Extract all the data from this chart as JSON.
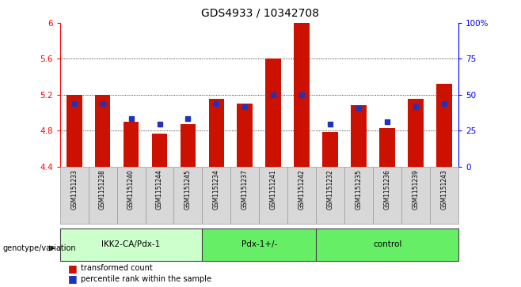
{
  "title": "GDS4933 / 10342708",
  "samples": [
    "GSM1151233",
    "GSM1151238",
    "GSM1151240",
    "GSM1151244",
    "GSM1151245",
    "GSM1151234",
    "GSM1151237",
    "GSM1151241",
    "GSM1151242",
    "GSM1151232",
    "GSM1151235",
    "GSM1151236",
    "GSM1151239",
    "GSM1151243"
  ],
  "red_values": [
    5.2,
    5.2,
    4.9,
    4.77,
    4.87,
    5.15,
    5.1,
    5.6,
    6.0,
    4.78,
    5.08,
    4.83,
    5.15,
    5.32
  ],
  "blue_values": [
    5.1,
    5.1,
    4.93,
    4.87,
    4.93,
    5.1,
    5.07,
    5.2,
    5.2,
    4.87,
    5.05,
    4.9,
    5.07,
    5.1
  ],
  "ymin": 4.4,
  "ymax": 6.0,
  "yticks": [
    4.4,
    4.8,
    5.2,
    5.6,
    6.0
  ],
  "ytick_labels": [
    "4.4",
    "4.8",
    "5.2",
    "5.6",
    "6"
  ],
  "right_yticks": [
    0,
    25,
    50,
    75,
    100
  ],
  "right_ytick_labels": [
    "0",
    "25",
    "50",
    "75",
    "100%"
  ],
  "bar_color": "#cc1100",
  "blue_color": "#2233bb",
  "group_labels": [
    "IKK2-CA/Pdx-1",
    "Pdx-1+/-",
    "control"
  ],
  "group_starts": [
    0,
    5,
    9
  ],
  "group_ends": [
    5,
    9,
    14
  ],
  "group_colors": [
    "#ccffcc",
    "#66ee66",
    "#66ee66"
  ],
  "group_label_text": "genotype/variation",
  "legend_red": "transformed count",
  "legend_blue": "percentile rank within the sample",
  "bar_width": 0.55
}
